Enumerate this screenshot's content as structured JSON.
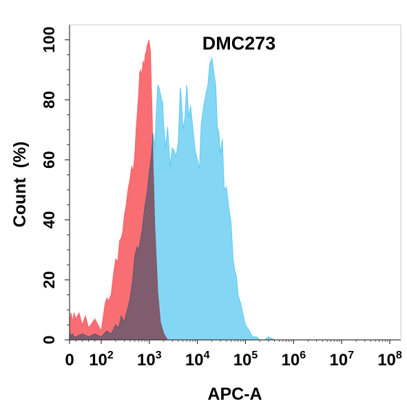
{
  "chart_data": {
    "type": "area",
    "title": "DMC273",
    "xlabel": "APC-A",
    "ylabel": "Count  (%)",
    "x_scale": "biexponential",
    "xlim": [
      0,
      100000000
    ],
    "ylim": [
      0,
      105
    ],
    "grid": false,
    "legend": "none",
    "x_ticks": [
      {
        "value": 0,
        "base": "0",
        "exp": ""
      },
      {
        "value": 100,
        "base": "10",
        "exp": "2"
      },
      {
        "value": 1000,
        "base": "10",
        "exp": "3"
      },
      {
        "value": 10000,
        "base": "10",
        "exp": "4"
      },
      {
        "value": 100000,
        "base": "10",
        "exp": "5"
      },
      {
        "value": 1000000,
        "base": "10",
        "exp": "6"
      },
      {
        "value": 10000000,
        "base": "10",
        "exp": "7"
      },
      {
        "value": 100000000,
        "base": "10",
        "exp": "8"
      }
    ],
    "y_ticks": [
      0,
      20,
      40,
      60,
      80,
      100
    ],
    "series": [
      {
        "color": "#f8666b",
        "x": [
          0,
          3,
          5,
          10,
          14,
          20,
          30,
          40,
          50,
          60,
          80,
          100,
          120,
          130,
          140,
          160,
          180,
          200,
          220,
          240,
          260,
          280,
          300,
          330,
          360,
          400,
          430,
          460,
          500,
          530,
          560,
          600,
          630,
          660,
          700,
          740,
          780,
          820,
          860,
          900,
          940,
          980,
          1020,
          1060,
          1100,
          1150,
          1200,
          1300,
          1500,
          1700,
          2000,
          2400
        ],
        "y": [
          4,
          8,
          9,
          6,
          9,
          7,
          9,
          5,
          8,
          4,
          7,
          3,
          12,
          14,
          13,
          15,
          22,
          27,
          26,
          33,
          34,
          36,
          41,
          45,
          50,
          54,
          58,
          56,
          62,
          70,
          75,
          82,
          89,
          90,
          88,
          93,
          91,
          95,
          96,
          98,
          99,
          100,
          98,
          96,
          85,
          74,
          58,
          38,
          16,
          6,
          2,
          0
        ]
      },
      {
        "color": "#5bcaf0",
        "x": [
          0,
          3,
          5,
          10,
          14,
          20,
          40,
          60,
          80,
          100,
          130,
          160,
          200,
          230,
          260,
          300,
          350,
          400,
          450,
          500,
          560,
          600,
          700,
          800,
          900,
          1000,
          1100,
          1200,
          1300,
          1400,
          1500,
          1600,
          1700,
          1800,
          1900,
          2000,
          2200,
          2400,
          2700,
          3000,
          3300,
          3600,
          4000,
          4400,
          4700,
          5000,
          5500,
          6000,
          6600,
          7200,
          8000,
          9000,
          10000,
          11000,
          12000,
          13500,
          15000,
          16500,
          18000,
          20000,
          22000,
          24000,
          26000,
          28000,
          30000,
          33000,
          36000,
          40000,
          45000,
          50000,
          55000,
          60000,
          65000,
          70000,
          80000,
          90000,
          100000,
          120000,
          140000,
          170000,
          200000,
          250000,
          300000,
          400000,
          500000,
          700000,
          1000000,
          1500000
        ],
        "y": [
          1,
          2,
          1,
          2,
          1,
          1,
          2,
          1,
          2,
          1,
          3,
          2,
          5,
          4,
          8,
          6,
          10,
          14,
          20,
          28,
          31,
          30,
          36,
          44,
          49,
          56,
          61,
          69,
          64,
          76,
          85,
          84,
          82,
          80,
          79,
          71,
          64,
          71,
          58,
          64,
          63,
          61,
          66,
          84,
          79,
          70,
          74,
          85,
          74,
          78,
          71,
          63,
          60,
          57,
          72,
          78,
          82,
          85,
          92,
          94,
          89,
          85,
          71,
          69,
          62,
          67,
          50,
          51,
          44,
          39,
          27,
          23,
          21,
          15,
          12,
          8,
          5,
          3,
          1,
          1,
          0,
          0,
          1,
          0,
          0,
          0,
          0,
          0
        ]
      }
    ]
  }
}
